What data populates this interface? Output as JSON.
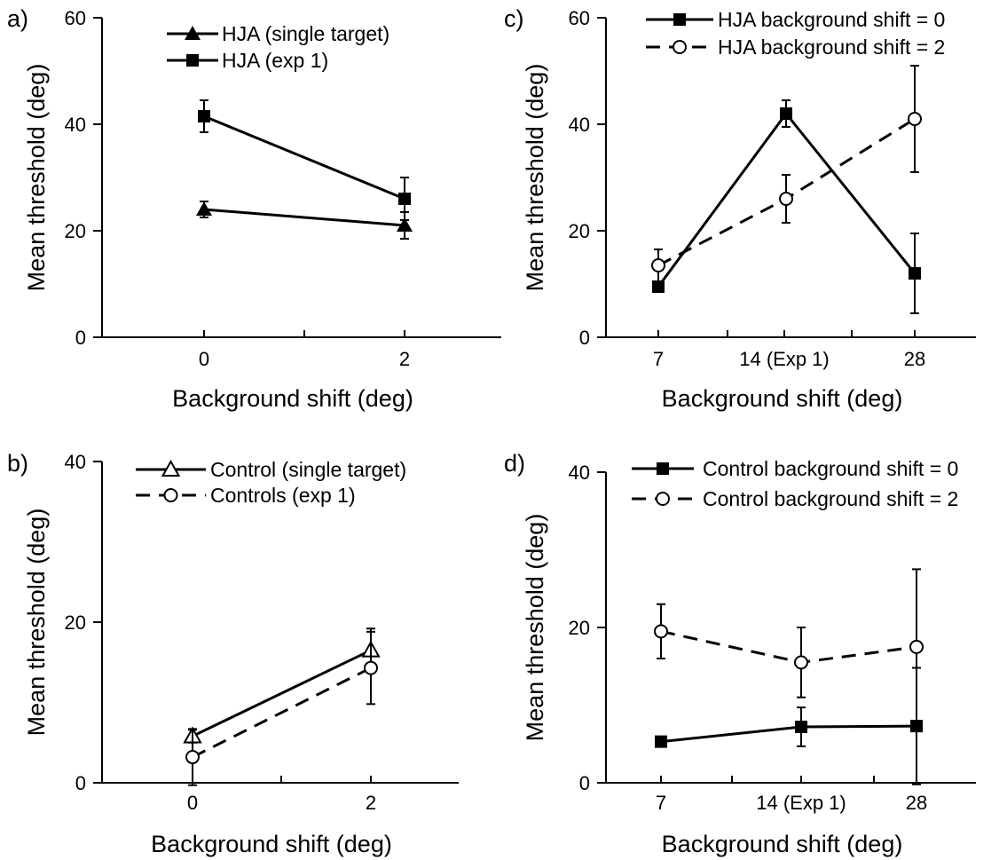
{
  "chart_data": [
    {
      "panel_label": "a)",
      "type": "line",
      "xlabel": "Background shift (deg)",
      "ylabel": "Mean threshold (deg)",
      "x_ticks": [
        {
          "label": "0"
        },
        {
          "label": "2"
        }
      ],
      "y_ticks": [
        "0",
        "20",
        "40",
        "60"
      ],
      "ylim": [
        0,
        60
      ],
      "legend_placement": "top",
      "series": [
        {
          "name": "HJA (single target)",
          "marker": "filled-triangle",
          "line": "solid",
          "values": [
            {
              "x": "0",
              "y": 24,
              "err": 1.5
            },
            {
              "x": "2",
              "y": 21,
              "err": 2.5
            }
          ]
        },
        {
          "name": "HJA (exp 1)",
          "marker": "filled-square",
          "line": "solid",
          "values": [
            {
              "x": "0",
              "y": 41.5,
              "err": 3
            },
            {
              "x": "2",
              "y": 26,
              "err": 4
            }
          ]
        }
      ]
    },
    {
      "panel_label": "b)",
      "type": "line",
      "xlabel": "Background shift (deg)",
      "ylabel": "Mean threshold (deg)",
      "x_ticks": [
        {
          "label": "0"
        },
        {
          "label": "2"
        }
      ],
      "y_ticks": [
        "0",
        "20",
        "40"
      ],
      "ylim": [
        0,
        40
      ],
      "legend_placement": "top",
      "series": [
        {
          "name": "Control (single target)",
          "marker": "open-triangle",
          "line": "solid",
          "values": [
            {
              "x": "0",
              "y": 5.8,
              "err": 0.8
            },
            {
              "x": "2",
              "y": 16.5,
              "err": 2.7
            }
          ]
        },
        {
          "name": "Controls (exp 1)",
          "marker": "open-circle",
          "line": "dashed",
          "values": [
            {
              "x": "0",
              "y": 3.2,
              "err": 3.5
            },
            {
              "x": "2",
              "y": 14.3,
              "err": 4.5
            }
          ]
        }
      ]
    },
    {
      "panel_label": "c)",
      "type": "line",
      "xlabel": "Background shift (deg)",
      "ylabel": "Mean threshold (deg)",
      "x_ticks": [
        {
          "label": "7"
        },
        {
          "label": "14  (Exp 1)"
        },
        {
          "label": "28"
        }
      ],
      "y_ticks": [
        "0",
        "20",
        "40",
        "60"
      ],
      "ylim": [
        0,
        60
      ],
      "legend_placement": "top",
      "series": [
        {
          "name": "HJA background shift = 0",
          "marker": "filled-square",
          "line": "solid",
          "values": [
            {
              "x": "7",
              "y": 9.5,
              "err": 0
            },
            {
              "x": "14",
              "y": 42,
              "err": 2.5
            },
            {
              "x": "28",
              "y": 12,
              "err": 7.5
            }
          ]
        },
        {
          "name": "HJA background shift = 2",
          "marker": "open-circle",
          "line": "dashed",
          "values": [
            {
              "x": "7",
              "y": 13.5,
              "err": 3
            },
            {
              "x": "14",
              "y": 26,
              "err": 4.5
            },
            {
              "x": "28",
              "y": 41,
              "err": 10
            }
          ]
        }
      ]
    },
    {
      "panel_label": "d)",
      "type": "line",
      "xlabel": "Background shift (deg)",
      "ylabel": "Mean threshold (deg)",
      "x_ticks": [
        {
          "label": "7"
        },
        {
          "label": "14  (Exp 1)"
        },
        {
          "label": "28"
        }
      ],
      "y_ticks": [
        "0",
        "20",
        "40"
      ],
      "ylim": [
        0,
        40
      ],
      "legend_placement": "top",
      "series": [
        {
          "name": "Control background shift = 0",
          "marker": "filled-square",
          "line": "solid",
          "values": [
            {
              "x": "7",
              "y": 5.3,
              "err": 0
            },
            {
              "x": "14",
              "y": 7.2,
              "err": 2.5
            },
            {
              "x": "28",
              "y": 7.3,
              "err": 7.5
            }
          ]
        },
        {
          "name": "Control background shift = 2",
          "marker": "open-circle",
          "line": "dashed",
          "values": [
            {
              "x": "7",
              "y": 19.5,
              "err": 3.5
            },
            {
              "x": "14",
              "y": 15.5,
              "err": 4.5
            },
            {
              "x": "28",
              "y": 17.5,
              "err": 10
            }
          ]
        }
      ]
    }
  ]
}
